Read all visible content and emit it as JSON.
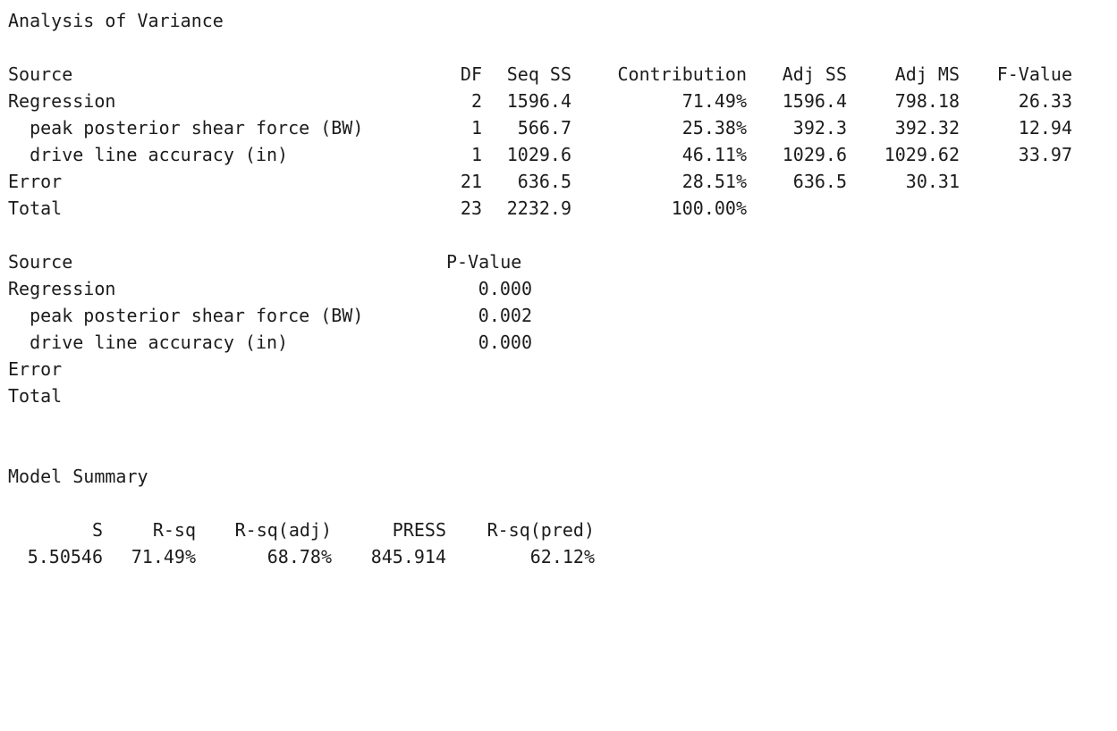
{
  "anova": {
    "title": "Analysis of Variance",
    "headers": {
      "source": "Source",
      "df": "DF",
      "seq_ss": "Seq SS",
      "contribution": "Contribution",
      "adj_ss": "Adj SS",
      "adj_ms": "Adj MS",
      "f_value": "F-Value"
    },
    "rows": [
      {
        "source": "Regression",
        "df": "2",
        "seq_ss": "1596.4",
        "contribution": "71.49%",
        "adj_ss": "1596.4",
        "adj_ms": "798.18",
        "f_value": "26.33"
      },
      {
        "source": "  peak posterior shear force (BW)",
        "df": "1",
        "seq_ss": "566.7",
        "contribution": "25.38%",
        "adj_ss": "392.3",
        "adj_ms": "392.32",
        "f_value": "12.94"
      },
      {
        "source": "  drive line accuracy (in)",
        "df": "1",
        "seq_ss": "1029.6",
        "contribution": "46.11%",
        "adj_ss": "1029.6",
        "adj_ms": "1029.62",
        "f_value": "33.97"
      },
      {
        "source": "Error",
        "df": "21",
        "seq_ss": "636.5",
        "contribution": "28.51%",
        "adj_ss": "636.5",
        "adj_ms": "30.31",
        "f_value": ""
      },
      {
        "source": "Total",
        "df": "23",
        "seq_ss": "2232.9",
        "contribution": "100.00%",
        "adj_ss": "",
        "adj_ms": "",
        "f_value": ""
      }
    ],
    "pvalue_headers": {
      "source": "Source",
      "p_value": "P-Value"
    },
    "pvalue_rows": [
      {
        "source": "Regression",
        "p_value": "0.000"
      },
      {
        "source": "  peak posterior shear force (BW)",
        "p_value": "0.002"
      },
      {
        "source": "  drive line accuracy (in)",
        "p_value": "0.000"
      },
      {
        "source": "Error",
        "p_value": ""
      },
      {
        "source": "Total",
        "p_value": ""
      }
    ]
  },
  "model_summary": {
    "title": "Model Summary",
    "headers": {
      "s": "S",
      "r_sq": "R-sq",
      "r_sq_adj": "R-sq(adj)",
      "press": "PRESS",
      "r_sq_pred": "R-sq(pred)"
    },
    "row": {
      "s": "5.50546",
      "r_sq": "71.49%",
      "r_sq_adj": "68.78%",
      "press": "845.914",
      "r_sq_pred": "62.12%"
    }
  }
}
